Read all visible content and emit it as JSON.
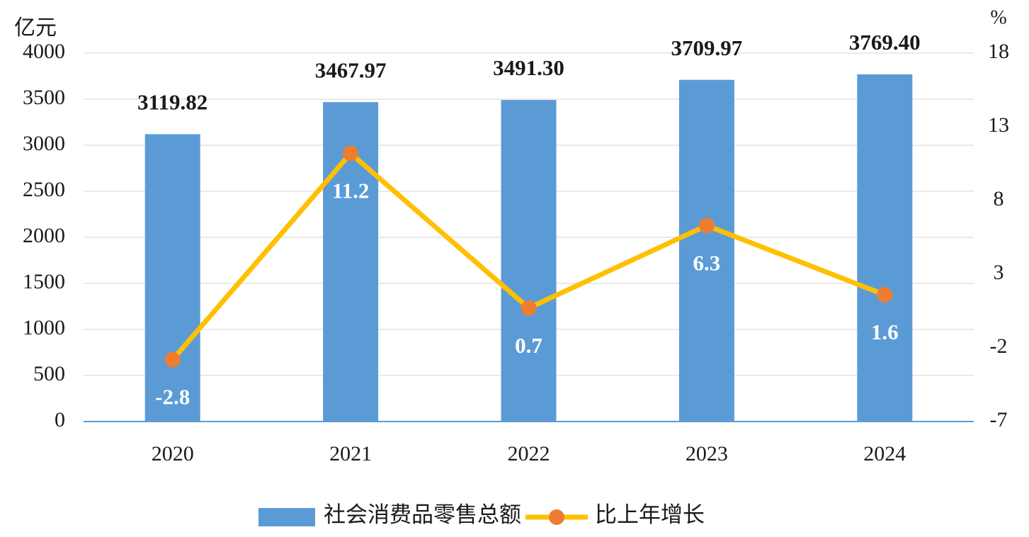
{
  "chart_data": {
    "type": "bar",
    "y_label": "亿元",
    "y2_label": "%",
    "categories": [
      "2020",
      "2021",
      "2022",
      "2023",
      "2024"
    ],
    "series": [
      {
        "name": "社会消费品零售总额",
        "type": "bar",
        "color": "#5b9bd5",
        "values": [
          3119.82,
          3467.97,
          3491.3,
          3709.97,
          3769.4
        ],
        "value_labels": [
          "3119.82",
          "3467.97",
          "3491.30",
          "3709.97",
          "3769.40"
        ]
      },
      {
        "name": "比上年增长",
        "type": "line",
        "axis": "y2",
        "color": "#ffc000",
        "marker_color": "#ed7d31",
        "values": [
          -2.8,
          11.2,
          0.7,
          6.3,
          1.6
        ]
      }
    ],
    "ylim": [
      0,
      4000
    ],
    "yticks": [
      0,
      500,
      1000,
      1500,
      2000,
      2500,
      3000,
      3500,
      4000
    ],
    "y2lim": [
      -7,
      18
    ],
    "y2ticks": [
      -7,
      -2,
      3,
      8,
      13,
      18
    ],
    "grid": true,
    "legend": "bottom"
  }
}
